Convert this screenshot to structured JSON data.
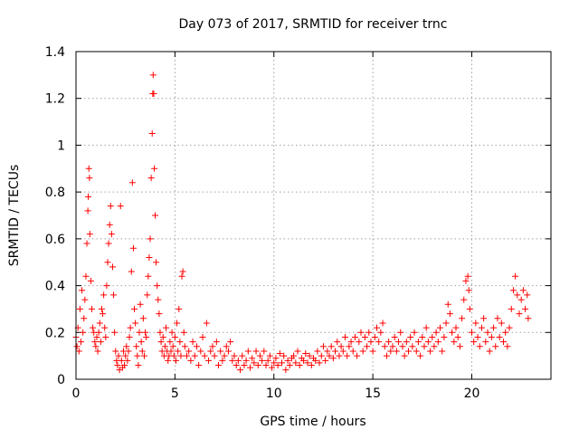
{
  "chart_data": {
    "type": "scatter",
    "title": "Day 073 of 2017, SRMTID for receiver trnc",
    "xlabel": "GPS time / hours",
    "ylabel": "SRMTID / TECUs",
    "xlim": [
      0,
      24
    ],
    "ylim": [
      0,
      1.4
    ],
    "x_ticks": [
      0,
      5,
      10,
      15,
      20
    ],
    "x_tick_labels": [
      "0",
      "5",
      "10",
      "15",
      "20"
    ],
    "y_ticks": [
      0,
      0.2,
      0.4,
      0.6,
      0.8,
      1.0,
      1.2,
      1.4
    ],
    "y_tick_labels": [
      "0",
      "0.2",
      "0.4",
      "0.6",
      "0.8",
      "1",
      "1.2",
      "1.4"
    ],
    "grid": true,
    "marker": "plus",
    "series": [
      {
        "name": "SRMTID",
        "color": "#ff0000",
        "points": [
          [
            0.0,
            0.18
          ],
          [
            0.05,
            0.14
          ],
          [
            0.1,
            0.22
          ],
          [
            0.15,
            0.12
          ],
          [
            0.2,
            0.3
          ],
          [
            0.25,
            0.16
          ],
          [
            0.3,
            0.38
          ],
          [
            0.35,
            0.2
          ],
          [
            0.4,
            0.26
          ],
          [
            0.45,
            0.34
          ],
          [
            0.5,
            0.44
          ],
          [
            0.55,
            0.58
          ],
          [
            0.6,
            0.72
          ],
          [
            0.62,
            0.78
          ],
          [
            0.65,
            0.9
          ],
          [
            0.68,
            0.86
          ],
          [
            0.7,
            0.62
          ],
          [
            0.75,
            0.42
          ],
          [
            0.8,
            0.3
          ],
          [
            0.85,
            0.22
          ],
          [
            0.9,
            0.2
          ],
          [
            0.95,
            0.16
          ],
          [
            1.0,
            0.14
          ],
          [
            1.05,
            0.18
          ],
          [
            1.1,
            0.12
          ],
          [
            1.15,
            0.2
          ],
          [
            1.2,
            0.24
          ],
          [
            1.25,
            0.16
          ],
          [
            1.3,
            0.3
          ],
          [
            1.35,
            0.28
          ],
          [
            1.4,
            0.36
          ],
          [
            1.45,
            0.22
          ],
          [
            1.5,
            0.18
          ],
          [
            1.55,
            0.4
          ],
          [
            1.6,
            0.5
          ],
          [
            1.65,
            0.58
          ],
          [
            1.7,
            0.66
          ],
          [
            1.75,
            0.74
          ],
          [
            1.8,
            0.62
          ],
          [
            1.85,
            0.48
          ],
          [
            1.9,
            0.36
          ],
          [
            1.95,
            0.2
          ],
          [
            2.0,
            0.12
          ],
          [
            2.05,
            0.08
          ],
          [
            2.1,
            0.06
          ],
          [
            2.15,
            0.1
          ],
          [
            2.2,
            0.04
          ],
          [
            2.25,
            0.74
          ],
          [
            2.3,
            0.08
          ],
          [
            2.35,
            0.05
          ],
          [
            2.4,
            0.12
          ],
          [
            2.45,
            0.06
          ],
          [
            2.5,
            0.1
          ],
          [
            2.55,
            0.14
          ],
          [
            2.6,
            0.08
          ],
          [
            2.65,
            0.12
          ],
          [
            2.7,
            0.18
          ],
          [
            2.75,
            0.22
          ],
          [
            2.8,
            0.46
          ],
          [
            2.85,
            0.84
          ],
          [
            2.9,
            0.56
          ],
          [
            2.95,
            0.3
          ],
          [
            3.0,
            0.24
          ],
          [
            3.05,
            0.14
          ],
          [
            3.1,
            0.1
          ],
          [
            3.15,
            0.06
          ],
          [
            3.2,
            0.2
          ],
          [
            3.25,
            0.32
          ],
          [
            3.3,
            0.16
          ],
          [
            3.35,
            0.12
          ],
          [
            3.4,
            0.26
          ],
          [
            3.45,
            0.1
          ],
          [
            3.5,
            0.2
          ],
          [
            3.55,
            0.18
          ],
          [
            3.6,
            0.36
          ],
          [
            3.65,
            0.44
          ],
          [
            3.7,
            0.52
          ],
          [
            3.75,
            0.6
          ],
          [
            3.8,
            0.86
          ],
          [
            3.85,
            1.05
          ],
          [
            3.88,
            1.22
          ],
          [
            3.9,
            1.3
          ],
          [
            3.93,
            1.22
          ],
          [
            3.96,
            0.9
          ],
          [
            4.0,
            0.7
          ],
          [
            4.05,
            0.5
          ],
          [
            4.1,
            0.4
          ],
          [
            4.15,
            0.34
          ],
          [
            4.2,
            0.28
          ],
          [
            4.25,
            0.2
          ],
          [
            4.3,
            0.16
          ],
          [
            4.35,
            0.12
          ],
          [
            4.4,
            0.18
          ],
          [
            4.45,
            0.1
          ],
          [
            4.5,
            0.14
          ],
          [
            4.55,
            0.22
          ],
          [
            4.6,
            0.12
          ],
          [
            4.65,
            0.08
          ],
          [
            4.7,
            0.1
          ],
          [
            4.75,
            0.16
          ],
          [
            4.8,
            0.12
          ],
          [
            4.85,
            0.2
          ],
          [
            4.9,
            0.14
          ],
          [
            4.95,
            0.1
          ],
          [
            5.0,
            0.18
          ],
          [
            5.05,
            0.08
          ],
          [
            5.1,
            0.24
          ],
          [
            5.15,
            0.12
          ],
          [
            5.2,
            0.3
          ],
          [
            5.25,
            0.16
          ],
          [
            5.3,
            0.1
          ],
          [
            5.35,
            0.44
          ],
          [
            5.4,
            0.46
          ],
          [
            5.45,
            0.2
          ],
          [
            5.5,
            0.14
          ],
          [
            5.6,
            0.1
          ],
          [
            5.7,
            0.12
          ],
          [
            5.8,
            0.08
          ],
          [
            5.9,
            0.16
          ],
          [
            6.0,
            0.1
          ],
          [
            6.1,
            0.14
          ],
          [
            6.2,
            0.06
          ],
          [
            6.3,
            0.12
          ],
          [
            6.4,
            0.18
          ],
          [
            6.5,
            0.1
          ],
          [
            6.6,
            0.24
          ],
          [
            6.7,
            0.08
          ],
          [
            6.8,
            0.12
          ],
          [
            6.9,
            0.14
          ],
          [
            7.0,
            0.1
          ],
          [
            7.1,
            0.16
          ],
          [
            7.2,
            0.06
          ],
          [
            7.3,
            0.12
          ],
          [
            7.4,
            0.08
          ],
          [
            7.5,
            0.1
          ],
          [
            7.6,
            0.14
          ],
          [
            7.7,
            0.12
          ],
          [
            7.8,
            0.16
          ],
          [
            7.9,
            0.08
          ],
          [
            8.0,
            0.1
          ],
          [
            8.1,
            0.06
          ],
          [
            8.2,
            0.08
          ],
          [
            8.3,
            0.04
          ],
          [
            8.4,
            0.1
          ],
          [
            8.5,
            0.06
          ],
          [
            8.6,
            0.08
          ],
          [
            8.7,
            0.12
          ],
          [
            8.8,
            0.05
          ],
          [
            8.9,
            0.09
          ],
          [
            9.0,
            0.07
          ],
          [
            9.1,
            0.12
          ],
          [
            9.2,
            0.06
          ],
          [
            9.3,
            0.1
          ],
          [
            9.4,
            0.08
          ],
          [
            9.5,
            0.12
          ],
          [
            9.6,
            0.06
          ],
          [
            9.7,
            0.08
          ],
          [
            9.8,
            0.1
          ],
          [
            9.9,
            0.05
          ],
          [
            10.0,
            0.07
          ],
          [
            10.1,
            0.09
          ],
          [
            10.2,
            0.06
          ],
          [
            10.3,
            0.11
          ],
          [
            10.4,
            0.07
          ],
          [
            10.5,
            0.1
          ],
          [
            10.6,
            0.04
          ],
          [
            10.7,
            0.08
          ],
          [
            10.8,
            0.06
          ],
          [
            10.9,
            0.09
          ],
          [
            11.0,
            0.1
          ],
          [
            11.1,
            0.07
          ],
          [
            11.2,
            0.12
          ],
          [
            11.3,
            0.06
          ],
          [
            11.4,
            0.09
          ],
          [
            11.5,
            0.08
          ],
          [
            11.6,
            0.11
          ],
          [
            11.7,
            0.07
          ],
          [
            11.8,
            0.1
          ],
          [
            11.9,
            0.06
          ],
          [
            12.0,
            0.09
          ],
          [
            12.1,
            0.08
          ],
          [
            12.2,
            0.12
          ],
          [
            12.3,
            0.07
          ],
          [
            12.4,
            0.1
          ],
          [
            12.5,
            0.14
          ],
          [
            12.6,
            0.08
          ],
          [
            12.7,
            0.12
          ],
          [
            12.8,
            0.1
          ],
          [
            12.9,
            0.14
          ],
          [
            13.0,
            0.09
          ],
          [
            13.1,
            0.12
          ],
          [
            13.2,
            0.16
          ],
          [
            13.3,
            0.1
          ],
          [
            13.4,
            0.14
          ],
          [
            13.5,
            0.12
          ],
          [
            13.6,
            0.18
          ],
          [
            13.7,
            0.1
          ],
          [
            13.8,
            0.14
          ],
          [
            13.9,
            0.16
          ],
          [
            14.0,
            0.12
          ],
          [
            14.1,
            0.18
          ],
          [
            14.2,
            0.1
          ],
          [
            14.3,
            0.16
          ],
          [
            14.4,
            0.2
          ],
          [
            14.5,
            0.12
          ],
          [
            14.6,
            0.18
          ],
          [
            14.7,
            0.14
          ],
          [
            14.8,
            0.2
          ],
          [
            14.9,
            0.16
          ],
          [
            15.0,
            0.12
          ],
          [
            15.1,
            0.18
          ],
          [
            15.2,
            0.22
          ],
          [
            15.3,
            0.16
          ],
          [
            15.4,
            0.2
          ],
          [
            15.5,
            0.24
          ],
          [
            15.6,
            0.14
          ],
          [
            15.7,
            0.1
          ],
          [
            15.8,
            0.16
          ],
          [
            15.9,
            0.12
          ],
          [
            16.0,
            0.14
          ],
          [
            16.1,
            0.18
          ],
          [
            16.2,
            0.12
          ],
          [
            16.3,
            0.16
          ],
          [
            16.4,
            0.2
          ],
          [
            16.5,
            0.14
          ],
          [
            16.6,
            0.1
          ],
          [
            16.7,
            0.16
          ],
          [
            16.8,
            0.12
          ],
          [
            16.9,
            0.18
          ],
          [
            17.0,
            0.14
          ],
          [
            17.1,
            0.2
          ],
          [
            17.2,
            0.12
          ],
          [
            17.3,
            0.16
          ],
          [
            17.4,
            0.1
          ],
          [
            17.5,
            0.18
          ],
          [
            17.6,
            0.14
          ],
          [
            17.7,
            0.22
          ],
          [
            17.8,
            0.16
          ],
          [
            17.9,
            0.12
          ],
          [
            18.0,
            0.18
          ],
          [
            18.1,
            0.14
          ],
          [
            18.2,
            0.2
          ],
          [
            18.3,
            0.16
          ],
          [
            18.4,
            0.22
          ],
          [
            18.5,
            0.12
          ],
          [
            18.6,
            0.18
          ],
          [
            18.7,
            0.24
          ],
          [
            18.8,
            0.32
          ],
          [
            18.9,
            0.28
          ],
          [
            19.0,
            0.2
          ],
          [
            19.1,
            0.16
          ],
          [
            19.2,
            0.22
          ],
          [
            19.3,
            0.18
          ],
          [
            19.4,
            0.14
          ],
          [
            19.5,
            0.26
          ],
          [
            19.6,
            0.34
          ],
          [
            19.7,
            0.42
          ],
          [
            19.8,
            0.44
          ],
          [
            19.85,
            0.38
          ],
          [
            19.9,
            0.3
          ],
          [
            20.0,
            0.2
          ],
          [
            20.1,
            0.16
          ],
          [
            20.2,
            0.24
          ],
          [
            20.3,
            0.18
          ],
          [
            20.4,
            0.14
          ],
          [
            20.5,
            0.22
          ],
          [
            20.6,
            0.26
          ],
          [
            20.7,
            0.16
          ],
          [
            20.8,
            0.2
          ],
          [
            20.9,
            0.12
          ],
          [
            21.0,
            0.18
          ],
          [
            21.1,
            0.22
          ],
          [
            21.2,
            0.14
          ],
          [
            21.3,
            0.26
          ],
          [
            21.4,
            0.18
          ],
          [
            21.5,
            0.24
          ],
          [
            21.6,
            0.16
          ],
          [
            21.7,
            0.2
          ],
          [
            21.8,
            0.14
          ],
          [
            21.9,
            0.22
          ],
          [
            22.0,
            0.3
          ],
          [
            22.1,
            0.38
          ],
          [
            22.2,
            0.44
          ],
          [
            22.3,
            0.36
          ],
          [
            22.4,
            0.28
          ],
          [
            22.5,
            0.34
          ],
          [
            22.6,
            0.38
          ],
          [
            22.7,
            0.3
          ],
          [
            22.8,
            0.36
          ],
          [
            22.85,
            0.26
          ]
        ]
      }
    ]
  }
}
